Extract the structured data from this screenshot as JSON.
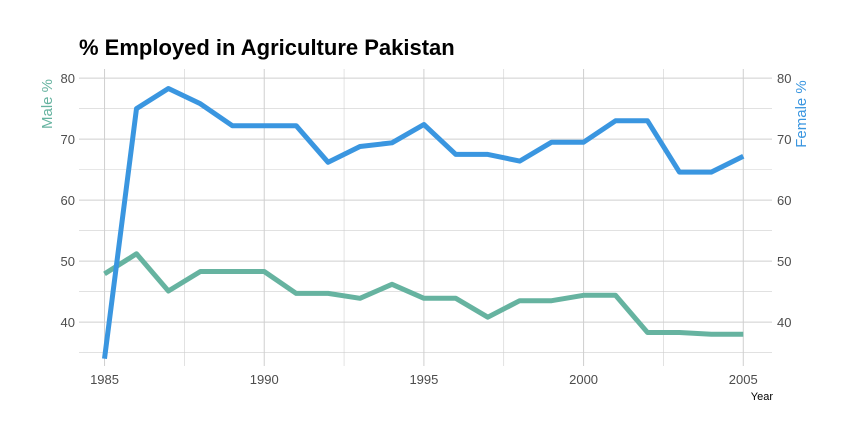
{
  "chart_data": {
    "type": "line",
    "title": "% Employed in Agriculture Pakistan",
    "xlabel": "Year",
    "ylabel_left": "Male %",
    "ylabel_right": "Female %",
    "x": [
      1985,
      1986,
      1987,
      1988,
      1989,
      1990,
      1991,
      1992,
      1993,
      1994,
      1995,
      1996,
      1997,
      1998,
      1999,
      2000,
      2001,
      2002,
      2003,
      2004,
      2005
    ],
    "x_ticks": [
      1985,
      1990,
      1995,
      2000,
      2005
    ],
    "y_ticks": [
      40,
      50,
      60,
      70,
      80
    ],
    "xlim": [
      1984.2,
      2005.9
    ],
    "ylim": [
      32.8,
      81.5
    ],
    "grid": true,
    "series": [
      {
        "name": "Male %",
        "axis": "left",
        "color": "#66b3a0",
        "values": [
          47.9,
          51.2,
          45.1,
          48.3,
          48.3,
          48.3,
          44.7,
          44.7,
          43.9,
          46.2,
          43.9,
          43.9,
          40.8,
          43.5,
          43.5,
          44.4,
          44.4,
          38.3,
          38.3,
          38.0,
          38.0
        ]
      },
      {
        "name": "Female %",
        "axis": "right",
        "color": "#3a96e0",
        "values": [
          34.0,
          75.0,
          78.3,
          75.8,
          72.2,
          72.2,
          72.2,
          66.2,
          68.8,
          69.4,
          72.4,
          67.5,
          67.5,
          66.4,
          69.5,
          69.5,
          73.0,
          73.0,
          64.6,
          64.6,
          67.2
        ]
      }
    ],
    "colors": {
      "male_axis_label": "#66b3a0",
      "female_axis_label": "#3a96e0",
      "tick_text": "#4d4d4d",
      "grid": "#cfcfcf"
    }
  }
}
